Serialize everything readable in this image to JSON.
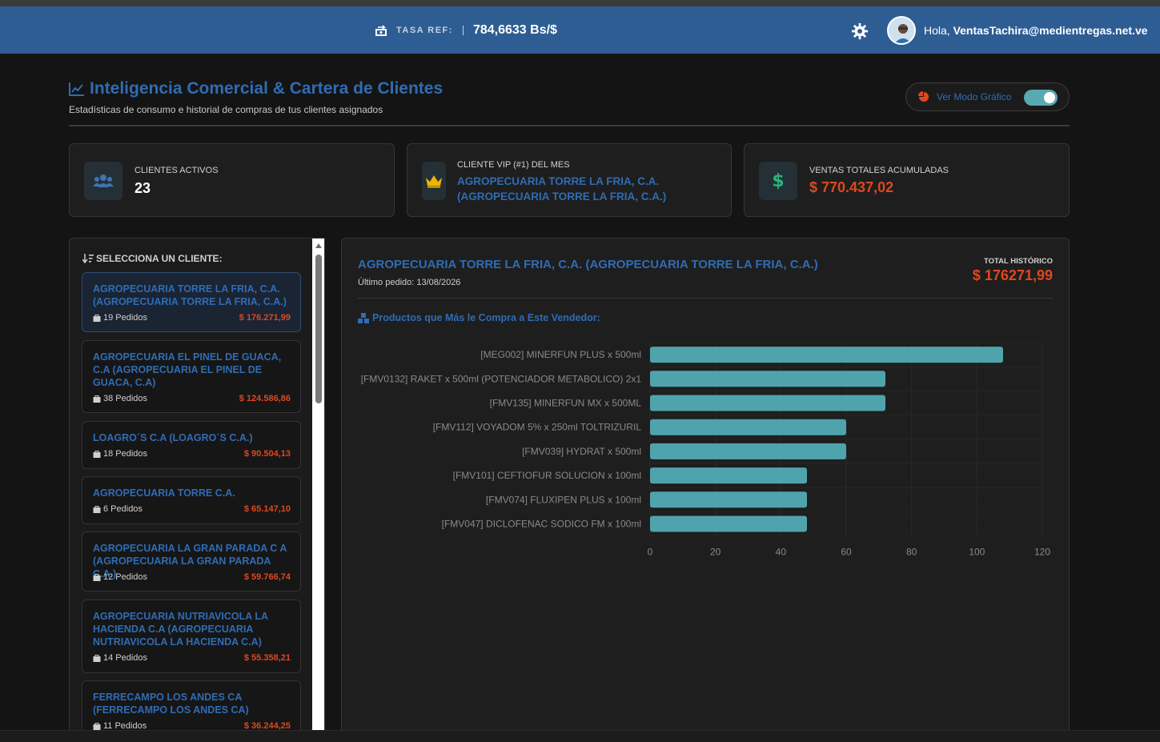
{
  "header": {
    "rate_label": "TASA REF:",
    "rate_value": "784,6633 Bs/$",
    "greeting": "Hola,",
    "user_email": "VentasTachira@medientregas.net.ve"
  },
  "page": {
    "title": "Inteligencia Comercial & Cartera de Clientes",
    "subtitle": "Estadísticas de consumo e historial de compras de tus clientes asignados",
    "toggle_label": "Ver Modo Gráfico",
    "toggle_on": true
  },
  "kpis": {
    "active_clients_label": "CLIENTES ACTIVOS",
    "active_clients_value": "23",
    "vip_label": "CLIENTE VIP (#1) DEL MES",
    "vip_name_line1": "AGROPECUARIA TORRE LA FRIA, C.A.",
    "vip_name_line2": "(AGROPECUARIA TORRE LA FRIA, C.A.)",
    "sales_label": "VENTAS TOTALES ACUMULADAS",
    "sales_value": "$ 770.437,02"
  },
  "sidebar": {
    "title": "SELECCIONA UN CLIENTE:",
    "clients": [
      {
        "name": "AGROPECUARIA TORRE LA FRIA, C.A. (AGROPECUARIA TORRE LA FRIA, C.A.)",
        "orders": "19 Pedidos",
        "amount": "$ 176.271,99"
      },
      {
        "name": "AGROPECUARIA EL PINEL DE GUACA, C.A (AGROPECUARIA EL PINEL DE GUACA, C.A)",
        "orders": "38 Pedidos",
        "amount": "$ 124.586,86"
      },
      {
        "name": "LOAGRO´S C.A (LOAGRO´S C.A.)",
        "orders": "18 Pedidos",
        "amount": "$ 90.504,13"
      },
      {
        "name": "AGROPECUARIA TORRE C.A.",
        "orders": "6 Pedidos",
        "amount": "$ 65.147,10"
      },
      {
        "name": "AGROPECUARIA LA GRAN PARADA C A (AGROPECUARIA LA GRAN PARADA C.A.)",
        "orders": "12 Pedidos",
        "amount": "$ 59.766,74"
      },
      {
        "name": "AGROPECUARIA NUTRIAVICOLA LA HACIENDA C.A (AGROPECUARIA NUTRIAVICOLA LA HACIENDA C.A)",
        "orders": "14 Pedidos",
        "amount": "$ 55.358,21"
      },
      {
        "name": "FERRECAMPO LOS ANDES CA (FERRECAMPO LOS ANDES CA)",
        "orders": "11 Pedidos",
        "amount": "$ 36.244,25"
      }
    ]
  },
  "detail": {
    "client_name": "AGROPECUARIA TORRE LA FRIA, C.A. (AGROPECUARIA TORRE LA FRIA, C.A.)",
    "last_order": "Último pedido: 13/08/2026",
    "total_label": "TOTAL HISTÓRICO",
    "total_value": "$ 176271,99",
    "products_title": "Productos que Más le Compra a Este Vendedor:"
  },
  "colors": {
    "accent_blue": "#2f6cb4",
    "money_orange": "#e0471f",
    "bar_teal": "#4fa3ad",
    "vip_gold": "#f0b400",
    "dollar_green": "#2bb37a"
  },
  "chart_data": {
    "type": "bar",
    "orientation": "horizontal",
    "categories": [
      "[MEG002] MINERFUN PLUS x 500ml",
      "[FMV0132] RAKET x 500ml (POTENCIADOR METABOLICO) 2x1",
      "[FMV135] MINERFUN MX x 500ML",
      "[FMV112] VOYADOM 5%  x 250ml TOLTRIZURIL",
      "[FMV039] HYDRAT x 500ml",
      "[FMV101] CEFTIOFUR SOLUCION x 100ml",
      "[FMV074] FLUXIPEN PLUS x 100ml",
      "[FMV047] DICLOFENAC SODICO FM x 100ml"
    ],
    "values": [
      108,
      72,
      72,
      60,
      60,
      48,
      48,
      48
    ],
    "xlim": [
      0,
      120
    ],
    "xticks": [
      0,
      20,
      40,
      60,
      80,
      100,
      120
    ],
    "grid": true
  }
}
